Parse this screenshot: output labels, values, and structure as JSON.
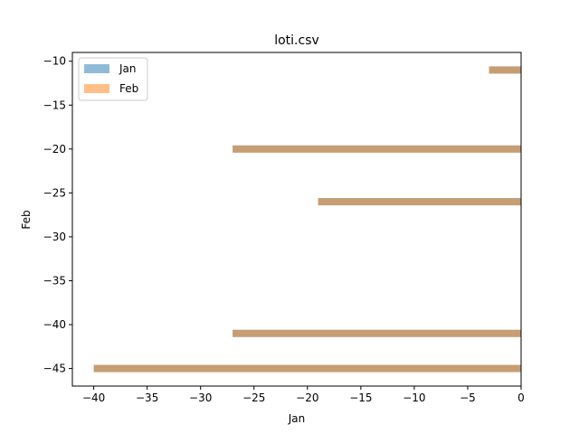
{
  "chart_data": {
    "type": "bar",
    "orientation": "horizontal",
    "title": "loti.csv",
    "xlabel": "Jan",
    "ylabel": "Feb",
    "xlim": [
      -42,
      0
    ],
    "ylim": [
      -47,
      -9
    ],
    "xticks": [
      -40,
      -35,
      -30,
      -25,
      -20,
      -15,
      -10,
      -5,
      0
    ],
    "yticks": [
      -10,
      -15,
      -20,
      -25,
      -30,
      -35,
      -40,
      -45
    ],
    "tick_labels_x": [
      "−40",
      "−35",
      "−30",
      "−25",
      "−20",
      "−15",
      "−10",
      "−5",
      "0"
    ],
    "tick_labels_y": [
      "−10",
      "−15",
      "−20",
      "−25",
      "−30",
      "−35",
      "−40",
      "−45"
    ],
    "grid": false,
    "legend_position": "upper-left",
    "series": [
      {
        "name": "Jan",
        "color": "#1f77b4",
        "opacity": 0.5,
        "bars": [
          {
            "y": -11,
            "x": -3
          },
          {
            "y": -20,
            "x": -27
          },
          {
            "y": -26,
            "x": -19
          },
          {
            "y": -41,
            "x": -27
          },
          {
            "y": -45,
            "x": -40
          }
        ]
      },
      {
        "name": "Feb",
        "color": "#ff7f0e",
        "opacity": 0.5,
        "bars": [
          {
            "y": -11,
            "x": -3
          },
          {
            "y": -20,
            "x": -27
          },
          {
            "y": -26,
            "x": -19
          },
          {
            "y": -41,
            "x": -27
          },
          {
            "y": -45,
            "x": -40
          }
        ]
      }
    ]
  }
}
